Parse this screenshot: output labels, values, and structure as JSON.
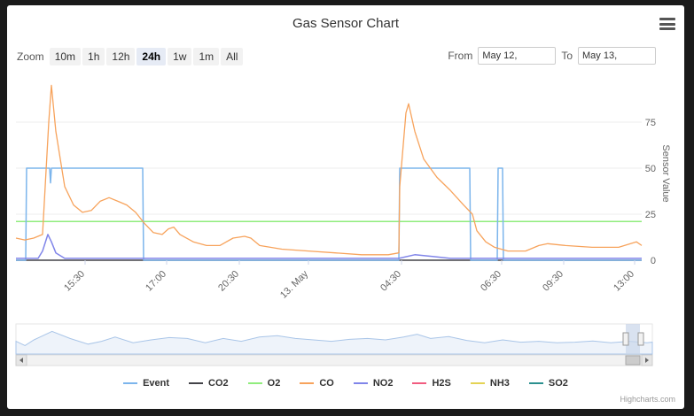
{
  "chart_data": {
    "type": "line",
    "title": "Gas Sensor Chart",
    "ylabel": "Sensor Value",
    "ylim": [
      0,
      100
    ],
    "yticks": [
      0,
      25,
      50,
      75
    ],
    "xticks": [
      "15:30",
      "17:00",
      "20:30",
      "13. May",
      "04:30",
      "06:30",
      "09:30",
      "13:00"
    ],
    "series": [
      {
        "name": "Event",
        "color": "#7cb5ec",
        "points": [
          [
            0,
            0
          ],
          [
            11,
            0
          ],
          [
            12,
            50
          ],
          [
            38,
            50
          ],
          [
            39,
            42
          ],
          [
            40,
            50
          ],
          [
            143,
            50
          ],
          [
            144,
            0
          ],
          [
            432,
            0
          ],
          [
            433,
            50
          ],
          [
            512,
            50
          ],
          [
            513,
            0
          ],
          [
            543,
            0
          ],
          [
            544,
            50
          ],
          [
            549,
            50
          ],
          [
            550,
            0
          ],
          [
            706,
            0
          ]
        ]
      },
      {
        "name": "CO",
        "color": "#f7a35c",
        "points": [
          [
            0,
            12
          ],
          [
            10,
            11
          ],
          [
            20,
            12
          ],
          [
            30,
            14
          ],
          [
            37,
            75
          ],
          [
            40,
            95
          ],
          [
            45,
            70
          ],
          [
            55,
            40
          ],
          [
            65,
            30
          ],
          [
            75,
            26
          ],
          [
            85,
            27
          ],
          [
            95,
            32
          ],
          [
            105,
            34
          ],
          [
            115,
            32
          ],
          [
            125,
            30
          ],
          [
            135,
            26
          ],
          [
            145,
            20
          ],
          [
            155,
            15
          ],
          [
            165,
            14
          ],
          [
            172,
            17
          ],
          [
            178,
            18
          ],
          [
            185,
            14
          ],
          [
            200,
            10
          ],
          [
            215,
            8
          ],
          [
            230,
            8
          ],
          [
            245,
            12
          ],
          [
            258,
            13
          ],
          [
            265,
            12
          ],
          [
            275,
            8
          ],
          [
            300,
            6
          ],
          [
            330,
            5
          ],
          [
            360,
            4
          ],
          [
            390,
            3
          ],
          [
            420,
            3
          ],
          [
            432,
            4
          ],
          [
            433,
            40
          ],
          [
            440,
            80
          ],
          [
            443,
            85
          ],
          [
            450,
            70
          ],
          [
            460,
            55
          ],
          [
            475,
            45
          ],
          [
            490,
            38
          ],
          [
            505,
            30
          ],
          [
            515,
            25
          ],
          [
            520,
            16
          ],
          [
            530,
            10
          ],
          [
            540,
            7
          ],
          [
            555,
            5
          ],
          [
            575,
            5
          ],
          [
            590,
            8
          ],
          [
            600,
            9
          ],
          [
            620,
            8
          ],
          [
            650,
            7
          ],
          [
            680,
            7
          ],
          [
            700,
            10
          ],
          [
            706,
            8
          ]
        ]
      },
      {
        "name": "NO2",
        "color": "#8085e9",
        "points": [
          [
            0,
            1
          ],
          [
            25,
            1
          ],
          [
            30,
            5
          ],
          [
            36,
            14
          ],
          [
            40,
            10
          ],
          [
            45,
            4
          ],
          [
            55,
            1
          ],
          [
            432,
            1
          ],
          [
            450,
            3
          ],
          [
            470,
            2
          ],
          [
            490,
            1
          ],
          [
            706,
            1
          ]
        ]
      },
      {
        "name": "O2",
        "color": "#90ed7d",
        "points": [
          [
            0,
            21
          ],
          [
            706,
            21
          ]
        ]
      },
      {
        "name": "CO2",
        "color": "#434348",
        "points": [
          [
            0,
            0
          ],
          [
            706,
            0
          ]
        ]
      },
      {
        "name": "H2S",
        "color": "#f15c80",
        "points": []
      },
      {
        "name": "NH3",
        "color": "#e4d354",
        "points": []
      },
      {
        "name": "SO2",
        "color": "#2b908f",
        "points": []
      }
    ]
  },
  "zoom": {
    "label": "Zoom",
    "buttons": [
      {
        "label": "10m",
        "active": false
      },
      {
        "label": "1h",
        "active": false
      },
      {
        "label": "12h",
        "active": false
      },
      {
        "label": "24h",
        "active": true
      },
      {
        "label": "1w",
        "active": false
      },
      {
        "label": "1m",
        "active": false
      },
      {
        "label": "All",
        "active": false
      }
    ]
  },
  "range": {
    "from_label": "From",
    "to_label": "To",
    "from_value": "May 12, ",
    "to_value": "May 13, "
  },
  "navigator": {
    "points": [
      [
        0,
        45
      ],
      [
        10,
        30
      ],
      [
        20,
        50
      ],
      [
        40,
        80
      ],
      [
        60,
        55
      ],
      [
        80,
        35
      ],
      [
        95,
        45
      ],
      [
        110,
        60
      ],
      [
        130,
        40
      ],
      [
        150,
        50
      ],
      [
        170,
        58
      ],
      [
        190,
        55
      ],
      [
        210,
        40
      ],
      [
        230,
        55
      ],
      [
        250,
        45
      ],
      [
        270,
        60
      ],
      [
        290,
        65
      ],
      [
        310,
        55
      ],
      [
        330,
        50
      ],
      [
        350,
        45
      ],
      [
        370,
        52
      ],
      [
        390,
        55
      ],
      [
        410,
        50
      ],
      [
        430,
        60
      ],
      [
        445,
        70
      ],
      [
        460,
        55
      ],
      [
        480,
        62
      ],
      [
        500,
        48
      ],
      [
        520,
        40
      ],
      [
        540,
        50
      ],
      [
        560,
        42
      ],
      [
        580,
        45
      ],
      [
        600,
        40
      ],
      [
        620,
        42
      ],
      [
        640,
        46
      ],
      [
        660,
        40
      ],
      [
        680,
        45
      ],
      [
        700,
        40
      ],
      [
        706,
        42
      ]
    ]
  },
  "credits": "Highcharts.com"
}
